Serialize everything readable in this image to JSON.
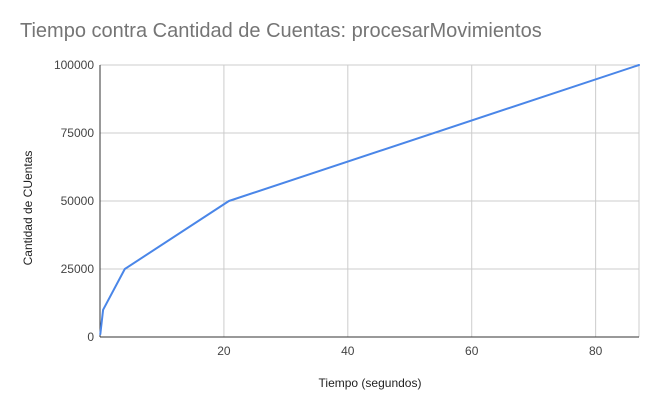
{
  "chart_data": {
    "type": "line",
    "title": "Tiempo contra Cantidad de Cuentas: procesarMovimientos",
    "xlabel": "Tiempo (segundos)",
    "ylabel": "Cantidad de CUentas",
    "xlim": [
      0,
      87
    ],
    "ylim": [
      0,
      100000
    ],
    "x_ticks": [
      "20",
      "40",
      "60",
      "80"
    ],
    "x_tick_values": [
      20,
      40,
      60,
      80
    ],
    "y_ticks": [
      "0",
      "25000",
      "50000",
      "75000",
      "100000"
    ],
    "y_tick_values": [
      0,
      25000,
      50000,
      75000,
      100000
    ],
    "grid": true,
    "series": [
      {
        "color": "#4a86e8",
        "x": [
          0.05,
          0.5,
          4,
          20.8,
          87
        ],
        "y": [
          1000,
          10000,
          25000,
          50000,
          100000
        ]
      }
    ]
  }
}
